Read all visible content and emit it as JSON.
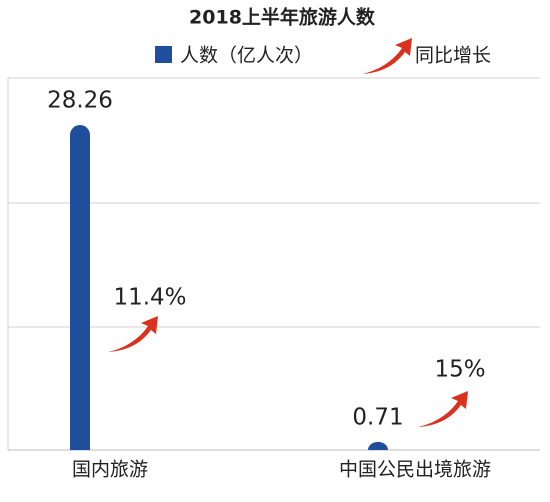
{
  "chart_data": {
    "type": "bar",
    "title": "2018上半年旅游人数",
    "categories": [
      "国内旅游",
      "中国公民出境旅游"
    ],
    "series": [
      {
        "name": "人数（亿人次）",
        "color": "#1f4e9c",
        "values": [
          28.26,
          0.71
        ]
      }
    ],
    "growth": {
      "name": "同比增长",
      "color": "#d9321f",
      "values": [
        11.4,
        15
      ],
      "value_labels": [
        "11.4%",
        "15%"
      ]
    },
    "ylim": [
      0,
      30
    ],
    "grid": true
  }
}
